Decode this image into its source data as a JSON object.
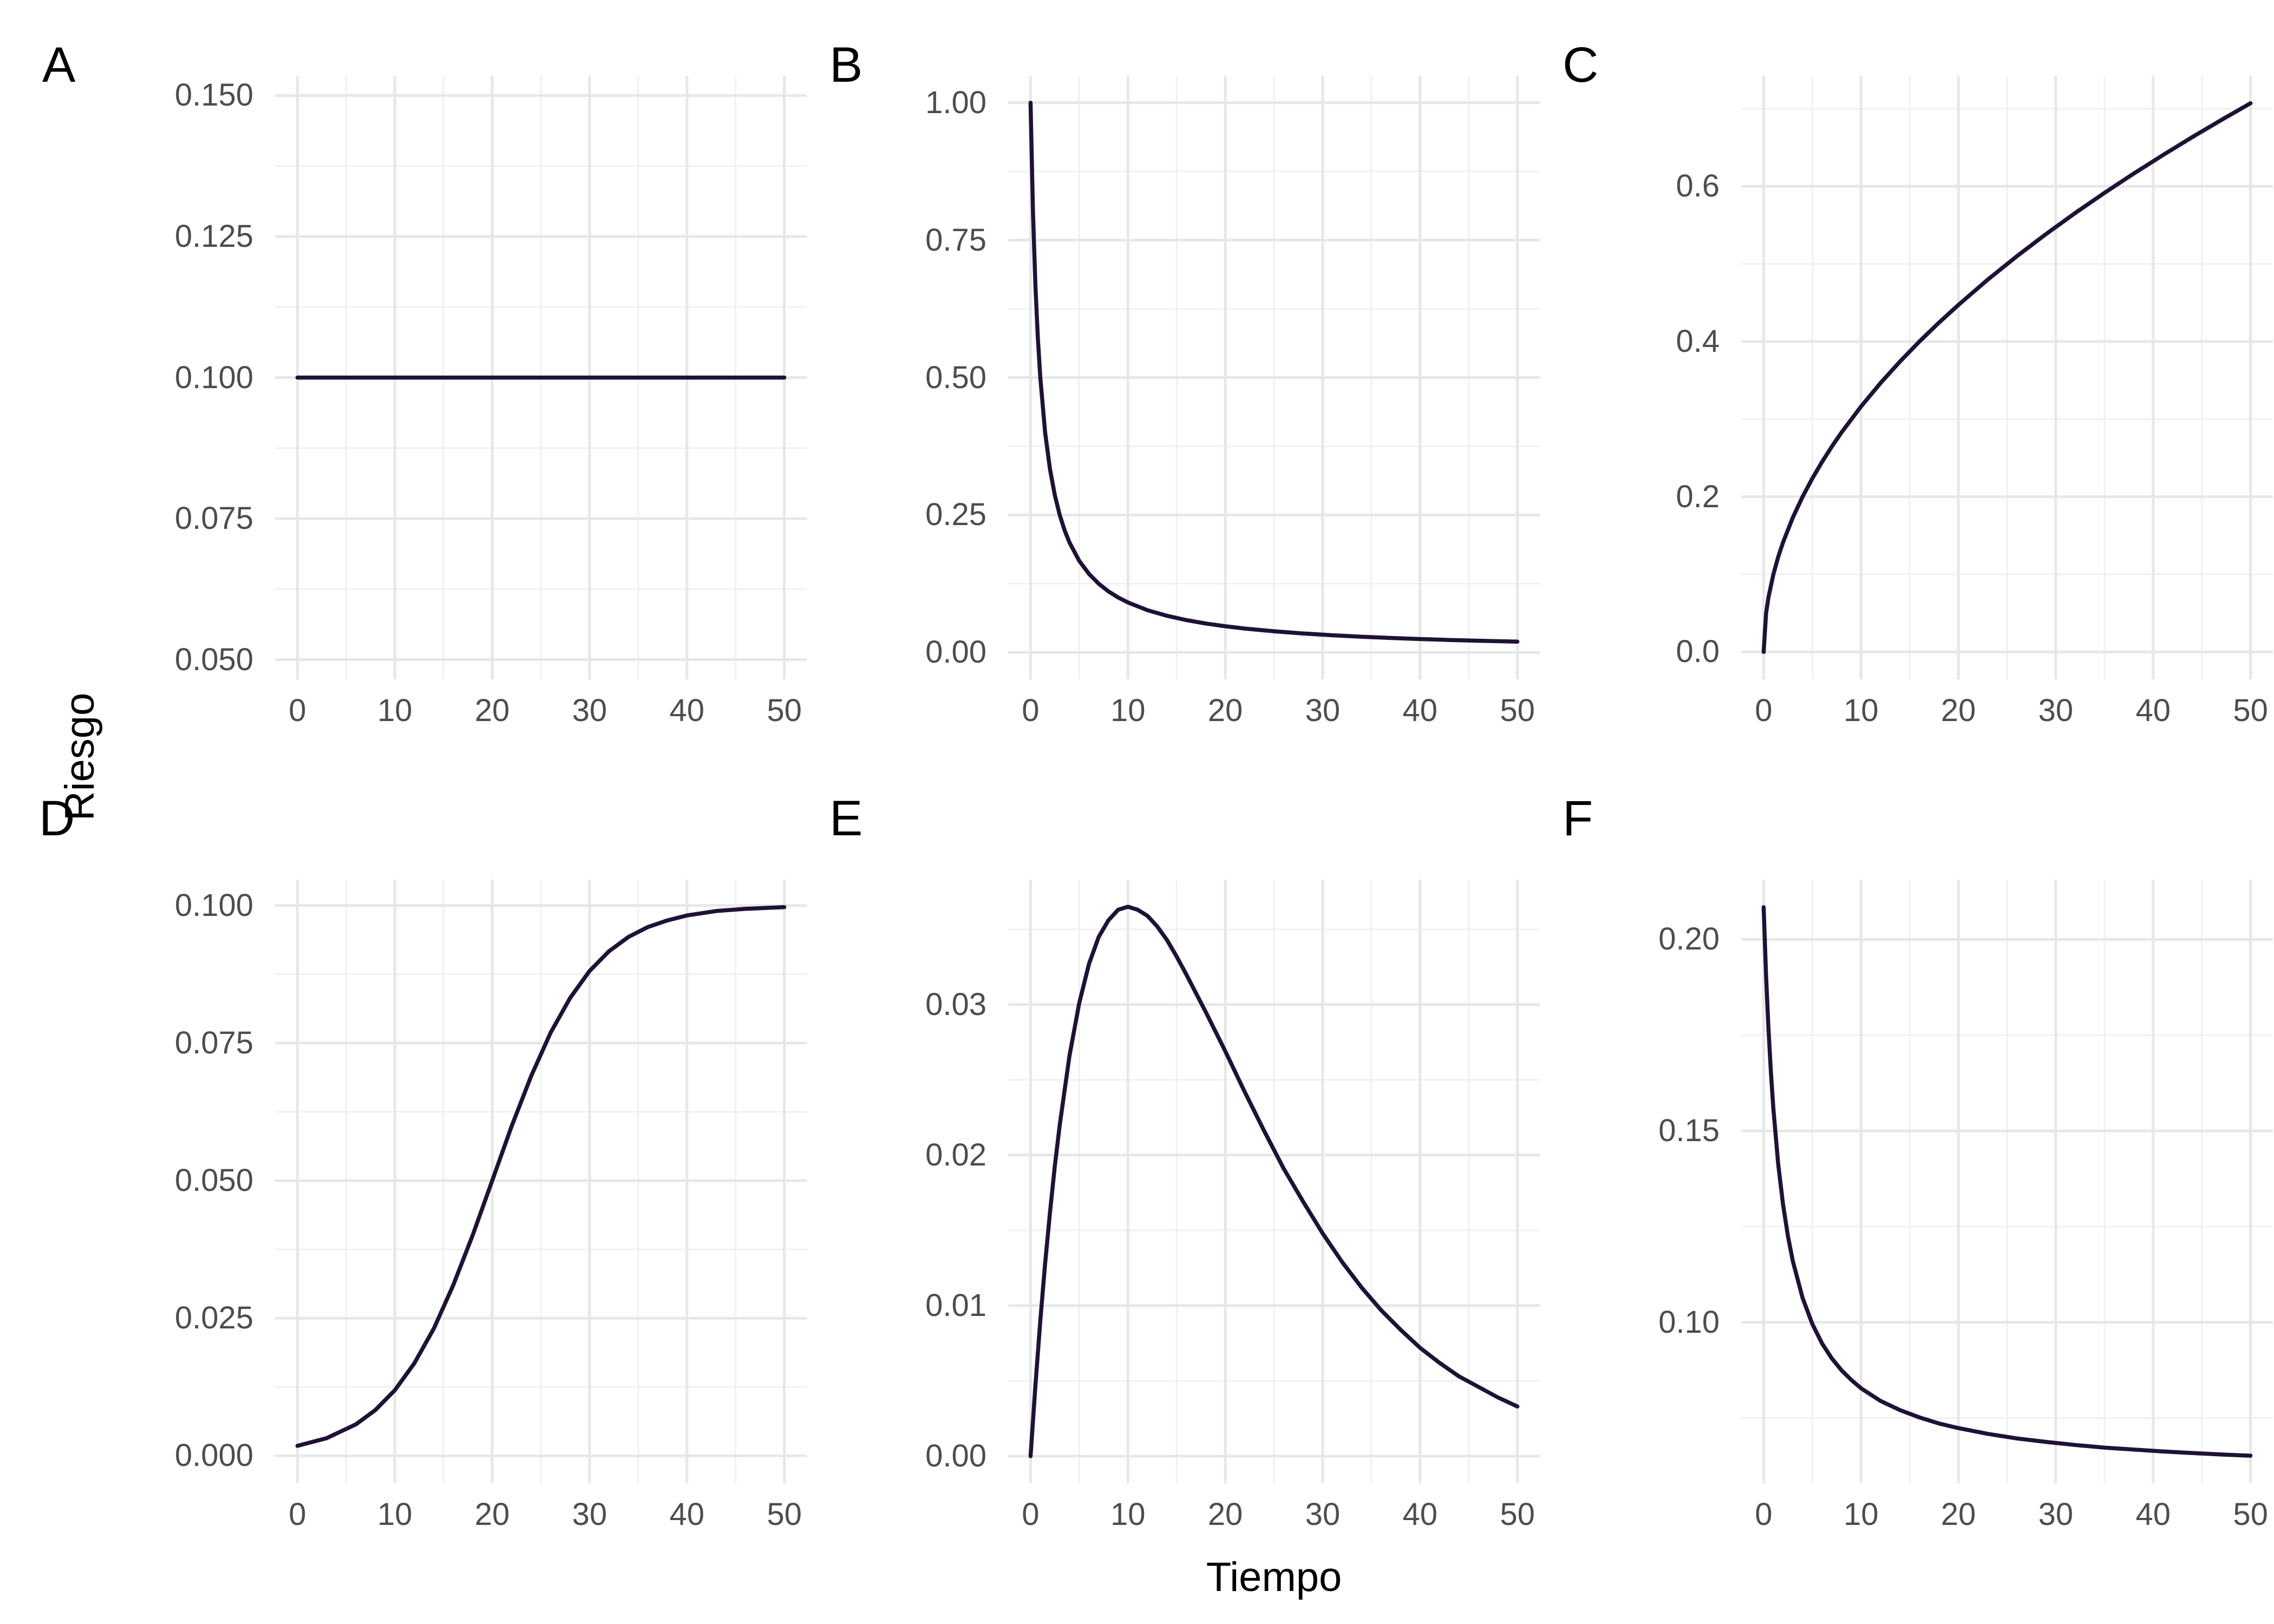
{
  "chart_data": {
    "type": "line",
    "title": "",
    "xlabel": "Tiempo",
    "ylabel": "Riesgo",
    "grid": "on",
    "legend": "none",
    "layout": "2 rows x 3 columns of panels, shared x axis 0-50, panel letters top-left",
    "x_domain": [
      -2.3,
      52.3
    ],
    "x_ticks": {
      "values": [
        0,
        10,
        20,
        30,
        40,
        50
      ],
      "labels": [
        "0",
        "10",
        "20",
        "30",
        "40",
        "50"
      ],
      "minor": [
        5,
        15,
        25,
        35,
        45
      ]
    },
    "style": {
      "line_color": "#1F1235",
      "grid_major_color": "#E7E7E7",
      "grid_minor_color": "#EFEFEF",
      "tick_label_color": "#4D4D4D",
      "title_color": "#000000",
      "background": "#FFFFFF"
    },
    "panels": [
      {
        "id": "a",
        "label": "A",
        "shape": "constant hazard at 0.100",
        "y_domain": [
          0.0465,
          0.1535
        ],
        "y_ticks": {
          "values": [
            0.15,
            0.125,
            0.1,
            0.075,
            0.05
          ],
          "labels": [
            "0.150",
            "0.125",
            "0.100",
            "0.075",
            "0.050"
          ]
        },
        "y_minor": [
          0.1375,
          0.1125,
          0.0875,
          0.0625
        ],
        "points": [
          [
            0,
            0.1
          ],
          [
            50,
            0.1
          ]
        ]
      },
      {
        "id": "b",
        "label": "B",
        "shape": "monotonically decreasing hazard from 1.00 toward 0.02",
        "y_domain": [
          -0.049,
          1.049
        ],
        "y_ticks": {
          "values": [
            1.0,
            0.75,
            0.5,
            0.25,
            0.0
          ],
          "labels": [
            "1.00",
            "0.75",
            "0.50",
            "0.25",
            "0.00"
          ]
        },
        "y_minor": [
          0.875,
          0.625,
          0.375,
          0.125
        ],
        "points": [
          [
            0,
            1.0
          ],
          [
            0.25,
            0.8
          ],
          [
            0.5,
            0.6667
          ],
          [
            0.75,
            0.5714
          ],
          [
            1,
            0.5
          ],
          [
            1.5,
            0.4
          ],
          [
            2,
            0.3333
          ],
          [
            2.5,
            0.2857
          ],
          [
            3,
            0.25
          ],
          [
            3.5,
            0.2222
          ],
          [
            4,
            0.2
          ],
          [
            5,
            0.1667
          ],
          [
            6,
            0.1429
          ],
          [
            7,
            0.125
          ],
          [
            8,
            0.1111
          ],
          [
            9,
            0.1
          ],
          [
            10,
            0.0909
          ],
          [
            12,
            0.0769
          ],
          [
            14,
            0.0667
          ],
          [
            16,
            0.0588
          ],
          [
            18,
            0.0526
          ],
          [
            20,
            0.0476
          ],
          [
            22,
            0.0435
          ],
          [
            25,
            0.0385
          ],
          [
            28,
            0.0345
          ],
          [
            31,
            0.0313
          ],
          [
            34,
            0.0286
          ],
          [
            37,
            0.0263
          ],
          [
            40,
            0.0244
          ],
          [
            43,
            0.0227
          ],
          [
            46,
            0.0213
          ],
          [
            50,
            0.0196
          ]
        ]
      },
      {
        "id": "c",
        "label": "C",
        "shape": "monotonically increasing concave hazard from 0.0 to 0.71",
        "y_domain": [
          -0.0354,
          0.7425
        ],
        "y_ticks": {
          "values": [
            0.6,
            0.4,
            0.2,
            0.0
          ],
          "labels": [
            "0.6",
            "0.4",
            "0.2",
            "0.0"
          ]
        },
        "y_minor": [
          0.7,
          0.5,
          0.3,
          0.1
        ],
        "points": [
          [
            0,
            0
          ],
          [
            0.25,
            0.05
          ],
          [
            0.5,
            0.0707
          ],
          [
            1,
            0.1
          ],
          [
            1.5,
            0.1225
          ],
          [
            2,
            0.1414
          ],
          [
            3,
            0.1732
          ],
          [
            4,
            0.2
          ],
          [
            5,
            0.2236
          ],
          [
            6,
            0.2449
          ],
          [
            7,
            0.2646
          ],
          [
            8,
            0.2828
          ],
          [
            10,
            0.3162
          ],
          [
            12,
            0.3464
          ],
          [
            14,
            0.3742
          ],
          [
            16,
            0.4
          ],
          [
            18,
            0.4243
          ],
          [
            20,
            0.4472
          ],
          [
            23,
            0.4796
          ],
          [
            26,
            0.5099
          ],
          [
            29,
            0.5385
          ],
          [
            32,
            0.5657
          ],
          [
            35,
            0.5916
          ],
          [
            38,
            0.6164
          ],
          [
            41,
            0.6403
          ],
          [
            44,
            0.6633
          ],
          [
            47,
            0.6856
          ],
          [
            50,
            0.7071
          ]
        ]
      },
      {
        "id": "d",
        "label": "D",
        "shape": "sigmoid increasing hazard approaching 0.100",
        "y_domain": [
          -0.005,
          0.1047
        ],
        "y_ticks": {
          "values": [
            0.1,
            0.075,
            0.05,
            0.025,
            0.0
          ],
          "labels": [
            "0.100",
            "0.075",
            "0.050",
            "0.025",
            "0.000"
          ]
        },
        "y_minor": [
          0.0875,
          0.0625,
          0.0375,
          0.0125
        ],
        "points": [
          [
            0,
            0.0018
          ],
          [
            3,
            0.0032
          ],
          [
            6,
            0.0057
          ],
          [
            8,
            0.0083
          ],
          [
            10,
            0.0119
          ],
          [
            12,
            0.0168
          ],
          [
            14,
            0.0231
          ],
          [
            16,
            0.031
          ],
          [
            18,
            0.0401
          ],
          [
            20,
            0.05
          ],
          [
            22,
            0.0599
          ],
          [
            24,
            0.069
          ],
          [
            26,
            0.0769
          ],
          [
            28,
            0.0832
          ],
          [
            30,
            0.0881
          ],
          [
            32,
            0.0917
          ],
          [
            34,
            0.0943
          ],
          [
            36,
            0.0961
          ],
          [
            38,
            0.0973
          ],
          [
            40,
            0.0982
          ],
          [
            43,
            0.099
          ],
          [
            46,
            0.0994
          ],
          [
            50,
            0.0997
          ]
        ]
      },
      {
        "id": "e",
        "label": "E",
        "shape": "unimodal hazard peaking near 0.0365 at t=10 then decreasing",
        "y_domain": [
          -0.0018,
          0.0383
        ],
        "y_ticks": {
          "values": [
            0.03,
            0.02,
            0.01,
            0.0
          ],
          "labels": [
            "0.03",
            "0.02",
            "0.01",
            "0.00"
          ]
        },
        "y_minor": [
          0.035,
          0.025,
          0.015,
          0.005
        ],
        "points": [
          [
            0,
            0
          ],
          [
            0.5,
            0.0047
          ],
          [
            1,
            0.009
          ],
          [
            1.5,
            0.0128
          ],
          [
            2,
            0.0162
          ],
          [
            2.5,
            0.0193
          ],
          [
            3,
            0.022
          ],
          [
            4,
            0.0266
          ],
          [
            5,
            0.0301
          ],
          [
            6,
            0.0327
          ],
          [
            7,
            0.0345
          ],
          [
            8,
            0.0356
          ],
          [
            9,
            0.0363
          ],
          [
            10,
            0.0365
          ],
          [
            11,
            0.0363
          ],
          [
            12,
            0.0359
          ],
          [
            13,
            0.0352
          ],
          [
            14,
            0.0343
          ],
          [
            15,
            0.0332
          ],
          [
            16,
            0.032
          ],
          [
            18,
            0.0295
          ],
          [
            20,
            0.0269
          ],
          [
            22,
            0.0242
          ],
          [
            24,
            0.0216
          ],
          [
            26,
            0.0191
          ],
          [
            28,
            0.0169
          ],
          [
            30,
            0.0148
          ],
          [
            32,
            0.0129
          ],
          [
            34,
            0.0112
          ],
          [
            36,
            0.0097
          ],
          [
            38,
            0.0084
          ],
          [
            40,
            0.0072
          ],
          [
            42,
            0.0062
          ],
          [
            44,
            0.0053
          ],
          [
            46,
            0.0046
          ],
          [
            48,
            0.0039
          ],
          [
            50,
            0.0033
          ]
        ]
      },
      {
        "id": "f",
        "label": "F",
        "shape": "steeply decreasing hazard from 0.21 leveling toward 0.065",
        "y_domain": [
          0.058,
          0.2156
        ],
        "y_ticks": {
          "values": [
            0.2,
            0.15,
            0.1
          ],
          "labels": [
            "0.20",
            "0.15",
            "0.10"
          ]
        },
        "y_minor": [
          0.175,
          0.125,
          0.075
        ],
        "points": [
          [
            0,
            0.2084
          ],
          [
            0.25,
            0.1904
          ],
          [
            0.5,
            0.1764
          ],
          [
            0.75,
            0.1651
          ],
          [
            1,
            0.1557
          ],
          [
            1.5,
            0.1413
          ],
          [
            2,
            0.1307
          ],
          [
            2.5,
            0.1225
          ],
          [
            3,
            0.116
          ],
          [
            4,
            0.1064
          ],
          [
            5,
            0.0996
          ],
          [
            6,
            0.0945
          ],
          [
            7,
            0.0906
          ],
          [
            8,
            0.0875
          ],
          [
            9,
            0.085
          ],
          [
            10,
            0.0828
          ],
          [
            12,
            0.0795
          ],
          [
            14,
            0.0771
          ],
          [
            16,
            0.0752
          ],
          [
            18,
            0.0736
          ],
          [
            20,
            0.0724
          ],
          [
            23,
            0.0709
          ],
          [
            26,
            0.0697
          ],
          [
            29,
            0.0688
          ],
          [
            32,
            0.068
          ],
          [
            35,
            0.0673
          ],
          [
            38,
            0.0668
          ],
          [
            41,
            0.0663
          ],
          [
            44,
            0.0659
          ],
          [
            47,
            0.0655
          ],
          [
            50,
            0.0652
          ]
        ]
      }
    ]
  }
}
